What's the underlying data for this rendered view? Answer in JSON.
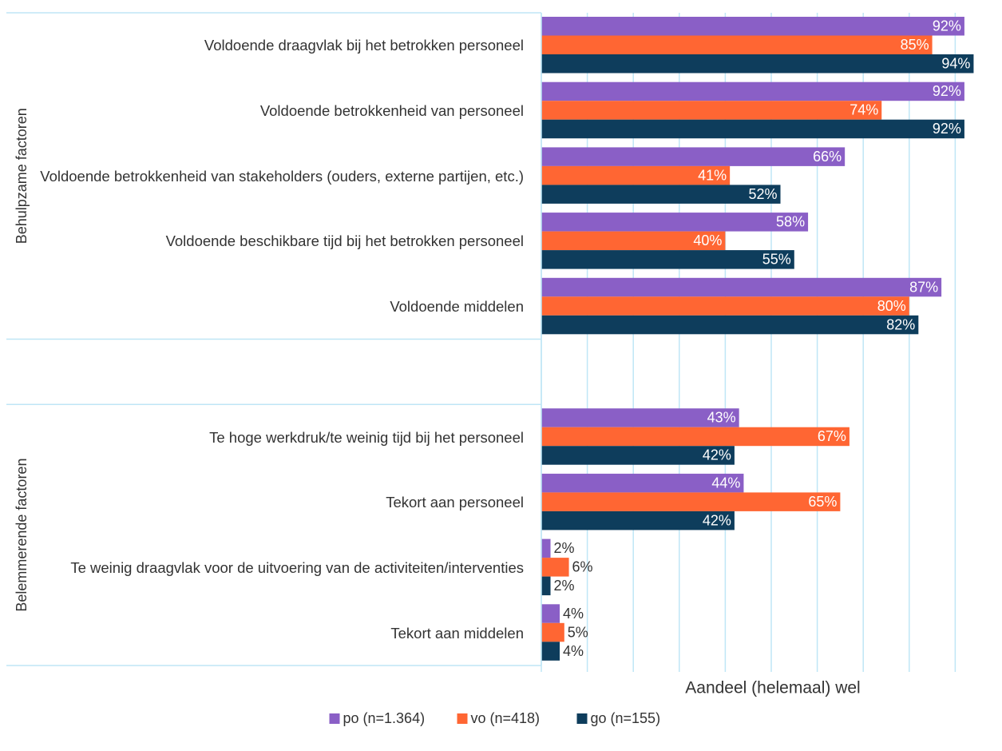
{
  "chart_data": {
    "type": "bar",
    "orientation": "horizontal",
    "x_label": "Aandeel (helemaal) wel",
    "groups": [
      "Behulpzame factoren",
      "Belemmerende factoren"
    ],
    "categories": [
      "Voldoende draagvlak bij het betrokken personeel",
      "Voldoende betrokkenheid van personeel",
      "Voldoende betrokkenheid van stakeholders (ouders, externe partijen, etc.)",
      "Voldoende beschikbare tijd bij het betrokken personeel",
      "Voldoende middelen",
      null,
      "Te hoge werkdruk/te weinig tijd bij het personeel",
      "Tekort aan personeel",
      "Te weinig draagvlak voor de uitvoering van de activiteiten/interventies",
      "Tekort aan middelen"
    ],
    "series": [
      {
        "name": "po (n=1.364)",
        "color": "#8a5fc6",
        "values": [
          92,
          92,
          66,
          58,
          87,
          null,
          43,
          44,
          2,
          4
        ],
        "value_labels": [
          "92%",
          "92%",
          "66%",
          "58%",
          "87%",
          null,
          "43%",
          "44%",
          "2%",
          "4%"
        ]
      },
      {
        "name": "vo (n=418)",
        "color": "#ff6633",
        "values": [
          85,
          74,
          41,
          40,
          80,
          null,
          67,
          65,
          6,
          5
        ],
        "value_labels": [
          "85%",
          "74%",
          "41%",
          "40%",
          "80%",
          null,
          "67%",
          "65%",
          "6%",
          "5%"
        ]
      },
      {
        "name": "go (n=155)",
        "color": "#0e3d5c",
        "values": [
          94,
          92,
          52,
          55,
          82,
          null,
          42,
          42,
          2,
          4
        ],
        "value_labels": [
          "94%",
          "92%",
          "52%",
          "55%",
          "82%",
          null,
          "42%",
          "42%",
          "2%",
          "4%"
        ]
      }
    ],
    "xlim": [
      0,
      100
    ],
    "xticks": [
      0,
      10,
      20,
      30,
      40,
      50,
      60,
      70,
      80,
      90
    ],
    "grid": true,
    "legend": "bottom"
  }
}
